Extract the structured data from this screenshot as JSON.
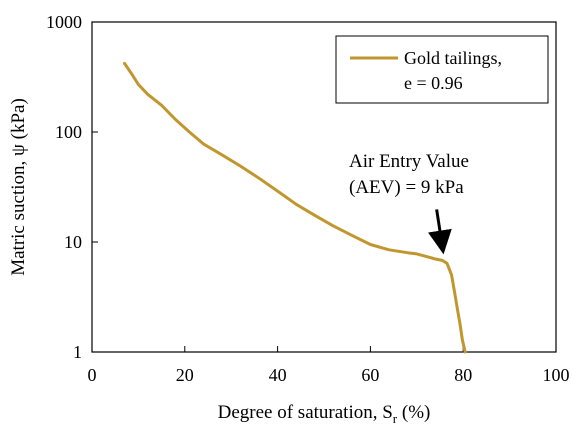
{
  "chart_data": {
    "type": "line",
    "xlabel": "Degree of saturation, S",
    "xlabel_subscript": "r",
    "xlabel_suffix": " (%)",
    "ylabel": "Matric suction, ψ (kPa)",
    "xlim": [
      0,
      100
    ],
    "ylim": [
      1,
      1000
    ],
    "y_scale": "log",
    "grid": false,
    "x_ticks": [
      "0",
      "20",
      "40",
      "60",
      "80",
      "100"
    ],
    "y_ticks": [
      "1",
      "10",
      "100",
      "1000"
    ],
    "legend_position": "top-right",
    "series": [
      {
        "name_line1": "Gold tailings,",
        "name_line2": "e = 0.96",
        "color": "#C1962E",
        "x": [
          7.0,
          8.5,
          10,
          12,
          15,
          18,
          21,
          24,
          28,
          32,
          36,
          40,
          44,
          48,
          52,
          56,
          60,
          64,
          68,
          70,
          72,
          74,
          75.5,
          76.5,
          77.5,
          78.2,
          78.8,
          79.3,
          79.8,
          80.4
        ],
        "y": [
          420,
          340,
          270,
          220,
          175,
          130,
          100,
          78,
          62,
          49,
          38,
          29,
          22,
          17.5,
          14,
          11.5,
          9.5,
          8.5,
          8.0,
          7.8,
          7.4,
          7.0,
          6.8,
          6.4,
          5.0,
          3.4,
          2.4,
          1.8,
          1.3,
          1.0
        ]
      }
    ],
    "annotation": {
      "line1": "Air Entry Value",
      "line2": "(AEV) = 9 kPa",
      "arrow_target": [
        76,
        6.8
      ]
    }
  }
}
